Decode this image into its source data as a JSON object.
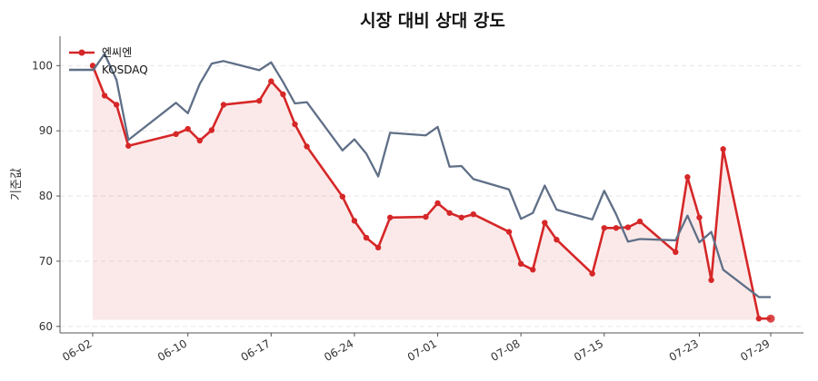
{
  "chart_data": {
    "type": "line",
    "title": "시장 대비 상대 강도",
    "xlabel": "",
    "ylabel": "기준값",
    "ylim": [
      59,
      104.5
    ],
    "yticks": [
      60,
      70,
      80,
      90,
      100
    ],
    "x": [
      "2025-06-02",
      "2025-06-03",
      "2025-06-04",
      "2025-06-05",
      "2025-06-09",
      "2025-06-10",
      "2025-06-11",
      "2025-06-12",
      "2025-06-13",
      "2025-06-16",
      "2025-06-17",
      "2025-06-18",
      "2025-06-19",
      "2025-06-20",
      "2025-06-23",
      "2025-06-24",
      "2025-06-25",
      "2025-06-26",
      "2025-06-27",
      "2025-06-30",
      "2025-07-01",
      "2025-07-02",
      "2025-07-03",
      "2025-07-04",
      "2025-07-07",
      "2025-07-08",
      "2025-07-09",
      "2025-07-10",
      "2025-07-11",
      "2025-07-14",
      "2025-07-15",
      "2025-07-16",
      "2025-07-17",
      "2025-07-18",
      "2025-07-21",
      "2025-07-22",
      "2025-07-23",
      "2025-07-24",
      "2025-07-25",
      "2025-07-28",
      "2025-07-29"
    ],
    "xtick_labels": [
      "06-02",
      "06-10",
      "06-17",
      "06-24",
      "07-01",
      "07-08",
      "07-15",
      "07-23",
      "07-29"
    ],
    "series": [
      {
        "name": "엔씨엔",
        "color": "#d62728",
        "values": [
          100,
          95.4,
          94,
          87.7,
          89.5,
          90.3,
          88.5,
          90.1,
          94,
          94.6,
          97.6,
          95.6,
          91,
          87.6,
          79.9,
          76.2,
          73.6,
          72.1,
          76.7,
          76.8,
          78.9,
          77.4,
          76.7,
          77.2,
          74.5,
          69.6,
          68.7,
          75.9,
          73.3,
          68.1,
          75.1,
          75.1,
          75.2,
          76.1,
          71.4,
          82.9,
          76.7,
          67.1,
          87.2,
          61.2,
          61.2
        ]
      },
      {
        "name": "KOSDAQ",
        "color": "#5f6f87",
        "values": [
          99.2,
          101.8,
          97.8,
          88.6,
          94.3,
          92.7,
          97.2,
          100.3,
          100.7,
          99.3,
          100.5,
          97.5,
          94.2,
          94.4,
          87,
          88.7,
          86.5,
          83,
          89.7,
          89.3,
          90.6,
          84.5,
          84.6,
          82.6,
          81,
          76.5,
          77.4,
          81.6,
          77.9,
          76.4,
          80.8,
          77.2,
          73,
          73.4,
          73.2,
          77,
          72.9,
          74.5,
          68.7,
          64.5,
          64.5
        ]
      }
    ],
    "fill_under": "엔씨엔",
    "grid": "horizontal dashed",
    "legend": "top-left"
  }
}
